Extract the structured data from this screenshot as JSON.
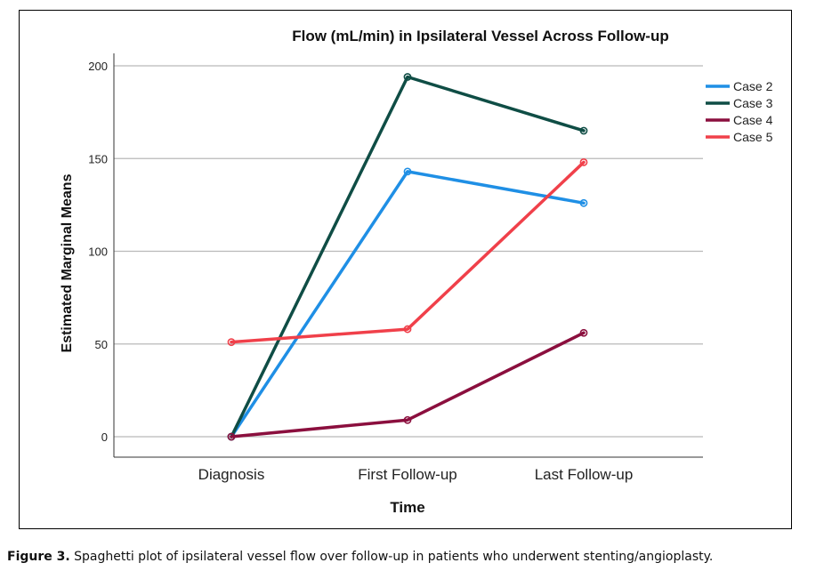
{
  "chart_data": {
    "type": "line",
    "title": "Flow (mL/min) in Ipsilateral Vessel Across Follow-up",
    "xlabel": "Time",
    "ylabel": "Estimated Marginal Means",
    "categories": [
      "Diagnosis",
      "First Follow-up",
      "Last Follow-up"
    ],
    "ylim": [
      0,
      200
    ],
    "yticks": [
      0,
      50,
      100,
      150,
      200
    ],
    "grid": "horizontal",
    "legend_position": "top-right",
    "series": [
      {
        "name": "Case 2",
        "color": "#1f8fe5",
        "values": [
          0,
          143,
          126
        ]
      },
      {
        "name": "Case 3",
        "color": "#0f4d45",
        "values": [
          0,
          194,
          165
        ]
      },
      {
        "name": "Case 4",
        "color": "#8b0f3e",
        "values": [
          0,
          9,
          56
        ]
      },
      {
        "name": "Case 5",
        "color": "#f0404a",
        "values": [
          51,
          58,
          148
        ]
      }
    ]
  },
  "caption": {
    "label": "Figure 3.",
    "text": "Spaghetti plot of ipsilateral vessel flow over follow-up in patients who underwent stenting/angioplasty."
  }
}
